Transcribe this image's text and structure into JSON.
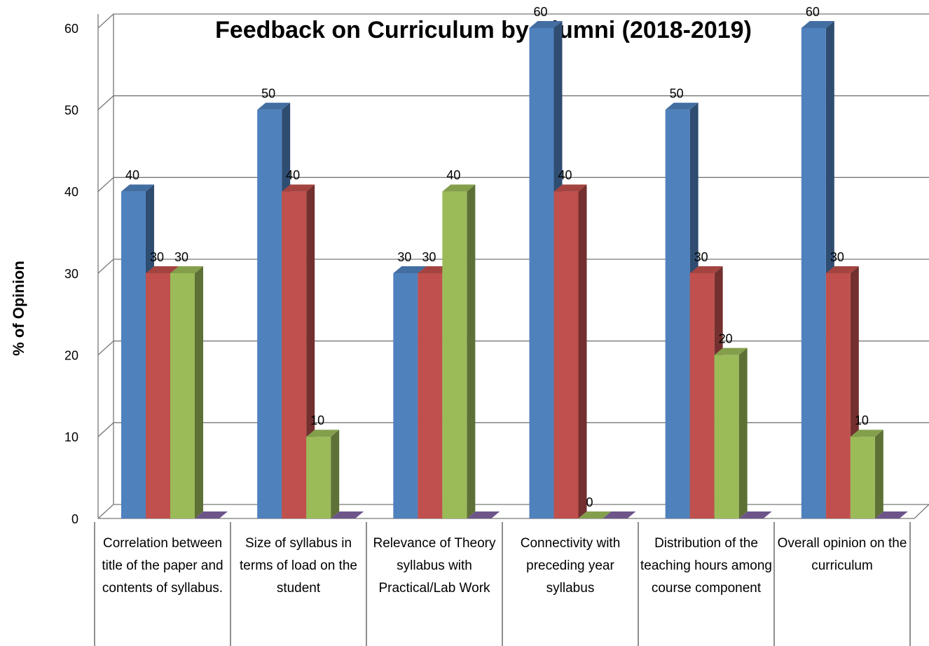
{
  "chart_data": {
    "type": "bar3d",
    "title": "Feedback on Curriculum by Alumni (2018-2019)",
    "ylabel": "% of Opinion",
    "categories": [
      "Correlation between title of the paper and contents of syllabus.",
      "Size of syllabus in terms of load on the student",
      "Relevance of Theory syllabus with Practical/Lab Work",
      "Connectivity with preceding year syllabus",
      "Distribution of the teaching hours among course component",
      "Overall opinion on the curriculum"
    ],
    "series": [
      {
        "color": "#4f81bd",
        "values": [
          40,
          50,
          30,
          60,
          50,
          60
        ],
        "show_labels": true
      },
      {
        "color": "#c0504d",
        "values": [
          30,
          40,
          30,
          40,
          30,
          30
        ],
        "show_labels": true
      },
      {
        "color": "#9bbb59",
        "values": [
          30,
          10,
          40,
          0,
          20,
          10
        ],
        "show_labels": true
      },
      {
        "color": "#8064a2",
        "values": [
          0,
          0,
          0,
          0,
          0,
          0
        ],
        "show_labels": false
      }
    ],
    "ylim": [
      0,
      60
    ],
    "yticks": [
      0,
      10,
      20,
      30,
      40,
      50,
      60
    ],
    "grid": true
  }
}
